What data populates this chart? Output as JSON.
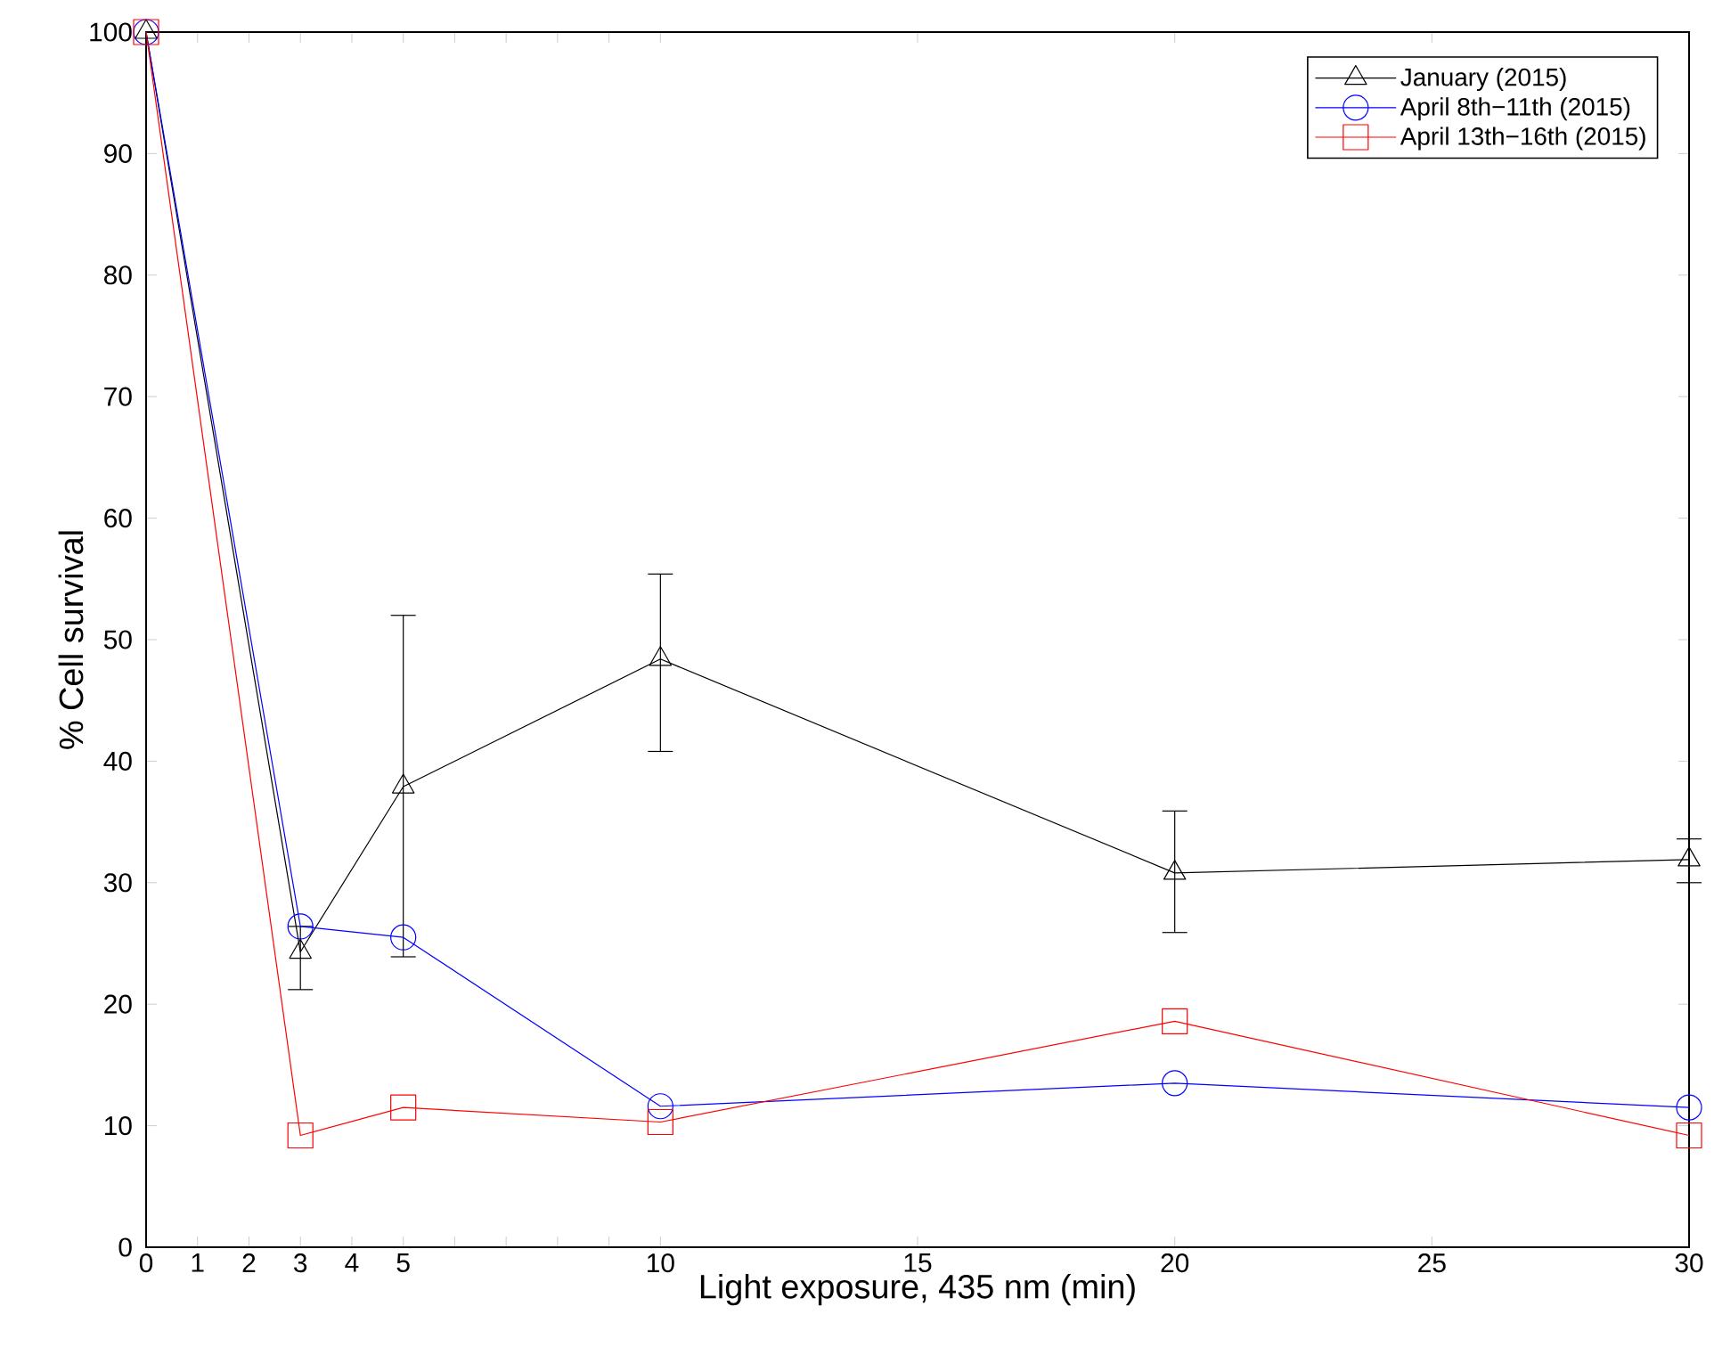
{
  "chart_data": {
    "type": "line",
    "xlabel": "Light exposure, 435 nm (min)",
    "ylabel": "% Cell survival",
    "x": [
      0,
      3,
      5,
      10,
      20,
      30
    ],
    "series": [
      {
        "name": "January (2015)",
        "color": "#000000",
        "marker": "triangle",
        "values": [
          100,
          24.3,
          37.9,
          48.4,
          30.8,
          31.9
        ],
        "errors": [
          null,
          [
            21.2,
            26.4
          ],
          [
            23.9,
            52.0
          ],
          [
            40.8,
            55.4
          ],
          [
            25.9,
            35.9
          ],
          [
            30.0,
            33.6
          ]
        ]
      },
      {
        "name": "April 8th−11th (2015)",
        "color": "#0000ff",
        "marker": "circle",
        "values": [
          100,
          26.4,
          25.5,
          11.6,
          13.5,
          11.5
        ]
      },
      {
        "name": "April 13th−16th (2015)",
        "color": "#ff0000",
        "marker": "square",
        "values": [
          100,
          9.2,
          11.5,
          10.3,
          18.6,
          9.2
        ]
      }
    ],
    "xlim": [
      0,
      30
    ],
    "ylim": [
      0,
      100
    ],
    "xticks": [
      0,
      1,
      2,
      3,
      4,
      5,
      {
        "value": 6,
        "label": null
      },
      {
        "value": 7,
        "label": null
      },
      {
        "value": 8,
        "label": null
      },
      {
        "value": 9,
        "label": null
      },
      10,
      15,
      20,
      25,
      30
    ],
    "yticks": [
      0,
      10,
      20,
      30,
      40,
      50,
      60,
      70,
      80,
      90,
      100
    ],
    "grid": false,
    "legend": "top right",
    "line_style": "solid"
  }
}
